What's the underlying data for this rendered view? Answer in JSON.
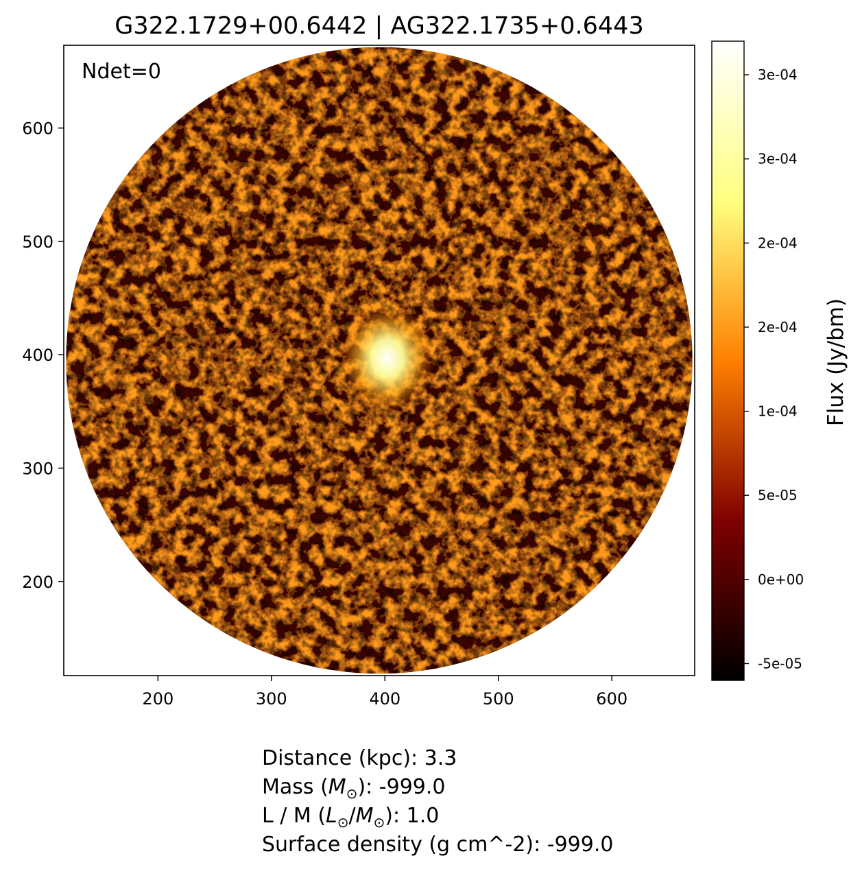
{
  "chart_data": {
    "type": "heatmap",
    "title": "G322.1729+00.6442 | AG322.1735+0.6443",
    "annotation": "Ndet=0",
    "x_ticks": [
      200,
      300,
      400,
      500,
      600
    ],
    "y_ticks": [
      200,
      300,
      400,
      500,
      600
    ],
    "xlim": [
      117,
      673
    ],
    "ylim": [
      117,
      673
    ],
    "colorbar": {
      "label": "Flux (Jy/bm)",
      "colormap": "afmhot",
      "range": [
        -6e-05,
        0.00032
      ],
      "ticks": [
        {
          "value": -5e-05,
          "label": "-5e-05"
        },
        {
          "value": 0.0,
          "label": "0e+00"
        },
        {
          "value": 5e-05,
          "label": "5e-05"
        },
        {
          "value": 0.0001,
          "label": "1e-04"
        },
        {
          "value": 0.00015,
          "label": "2e-04"
        },
        {
          "value": 0.0002,
          "label": "2e-04"
        },
        {
          "value": 0.00025,
          "label": "3e-04"
        },
        {
          "value": 0.0003,
          "label": "3e-04"
        }
      ]
    },
    "footprint": {
      "shape": "circle",
      "center": [
        395,
        395
      ],
      "radius": 276
    },
    "bright_source": {
      "x": 402,
      "y": 397
    }
  },
  "info_lines": [
    [
      "Distance (kpc): 3.3"
    ],
    [
      "Mass (",
      "M",
      "⊙",
      "): -999.0"
    ],
    [
      "L / M (",
      "L",
      "⊙",
      "/",
      "M",
      "⊙",
      "): 1.0"
    ],
    [
      "Surface density (g cm^-2): -999.0"
    ]
  ]
}
